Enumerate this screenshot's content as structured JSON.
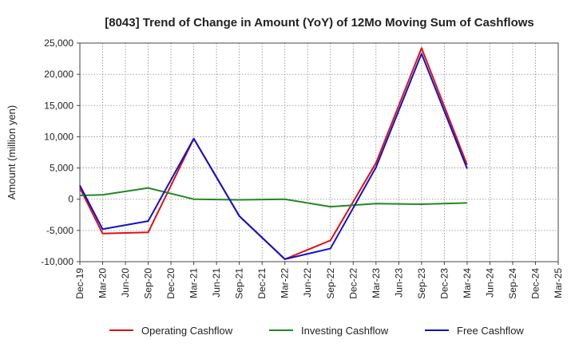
{
  "chart_data": {
    "type": "line",
    "title": "[8043]  Trend of Change in Amount (YoY) of 12Mo Moving Sum of Cashflows",
    "xlabel": "",
    "ylabel": "Amount (million yen)",
    "ylim": [
      -10000,
      25000
    ],
    "yticks": [
      -10000,
      -5000,
      0,
      5000,
      10000,
      15000,
      20000,
      25000
    ],
    "ytick_labels": [
      "-10,000",
      "-5,000",
      "0",
      "5,000",
      "10,000",
      "15,000",
      "20,000",
      "25,000"
    ],
    "categories": [
      "Dec-19",
      "Mar-20",
      "Jun-20",
      "Sep-20",
      "Dec-20",
      "Mar-21",
      "Jun-21",
      "Sep-21",
      "Dec-21",
      "Mar-22",
      "Jun-22",
      "Sep-22",
      "Dec-22",
      "Mar-23",
      "Jun-23",
      "Sep-23",
      "Dec-23",
      "Mar-24",
      "Jun-24",
      "Sep-24",
      "Dec-24",
      "Mar-25"
    ],
    "grid": true,
    "legend_position": "bottom",
    "series": [
      {
        "name": "Operating Cashflow",
        "color": "#dd1111",
        "values": [
          1800,
          -5500,
          null,
          -5300,
          null,
          9700,
          null,
          -2700,
          null,
          -9600,
          null,
          -6600,
          null,
          5800,
          null,
          24200,
          null,
          5500,
          null,
          null,
          null,
          null
        ]
      },
      {
        "name": "Investing Cashflow",
        "color": "#228822",
        "values": [
          600,
          700,
          null,
          1800,
          null,
          0,
          null,
          -100,
          null,
          0,
          null,
          -1200,
          null,
          -700,
          null,
          -800,
          null,
          -600,
          null,
          null,
          null,
          null
        ]
      },
      {
        "name": "Free Cashflow",
        "color": "#1111cc",
        "values": [
          2200,
          -4800,
          null,
          -3500,
          null,
          9700,
          null,
          -2700,
          null,
          -9600,
          null,
          -7900,
          null,
          5100,
          null,
          23300,
          null,
          4900,
          null,
          null,
          null,
          null
        ]
      }
    ]
  }
}
